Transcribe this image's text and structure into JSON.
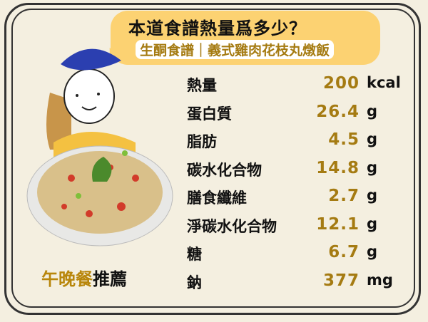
{
  "header": {
    "title": "本道食譜熱量爲多少？",
    "subtitle": "生酮食譜｜義式雞肉花枝丸燉飯"
  },
  "nutrition": [
    {
      "label": "熱量",
      "value": "200",
      "unit": "kcal"
    },
    {
      "label": "蛋白質",
      "value": "26.4",
      "unit": "g"
    },
    {
      "label": "脂肪",
      "value": "4.5",
      "unit": "g"
    },
    {
      "label": "碳水化合物",
      "value": "14.8",
      "unit": "g"
    },
    {
      "label": "膳食纖維",
      "value": "2.7",
      "unit": "g"
    },
    {
      "label": "淨碳水化合物",
      "value": "12.1",
      "unit": "g"
    },
    {
      "label": "糖",
      "value": "6.7",
      "unit": "g"
    },
    {
      "label": "鈉",
      "value": "377",
      "unit": "mg"
    }
  ],
  "recommend": {
    "highlight": "午晚餐",
    "text": "推薦"
  },
  "colors": {
    "accent": "#a57b12",
    "bubble": "#fcd272",
    "background": "#f4efe0"
  }
}
